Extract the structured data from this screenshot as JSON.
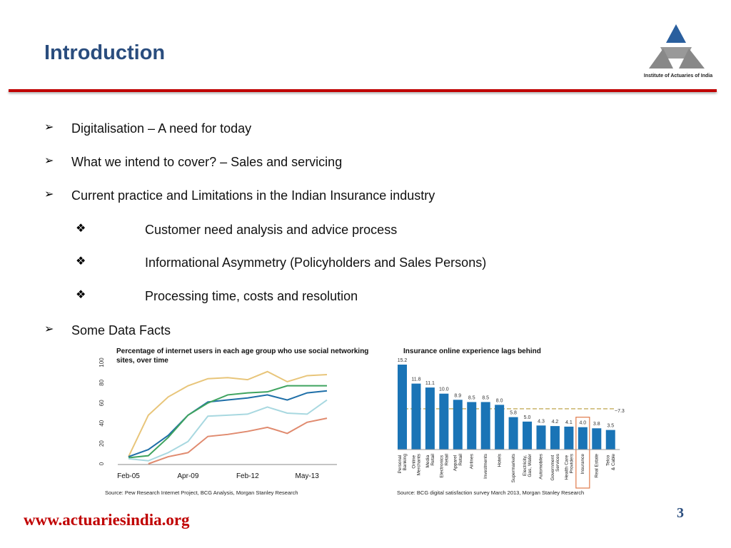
{
  "slide": {
    "title": "Introduction",
    "logo_text": "Institute of Actuaries of India",
    "bullets": [
      "Digitalisation – A need for today",
      "What we intend to cover? – Sales and servicing",
      "Current practice and Limitations in the Indian Insurance industry",
      "Some Data Facts"
    ],
    "sub_bullets": [
      "Customer need analysis and advice process",
      "Informational Asymmetry (Policyholders and Sales Persons)",
      "Processing time, costs and resolution"
    ],
    "footer": "www.actuariesindia.org",
    "page_number": "3"
  },
  "chart_data": [
    {
      "type": "line",
      "title": "Percentage of internet users in each age group who use social networking sites, over time",
      "source": "Source: Pew Research Internet Project, BCG Analysis, Morgan Stanley Research",
      "categories": [
        "Feb-05",
        null,
        null,
        "Apr-09",
        null,
        null,
        "Feb-12",
        null,
        null,
        "May-13",
        null
      ],
      "ylim": [
        0,
        100
      ],
      "yticks": [
        0,
        20,
        40,
        60,
        80,
        100
      ],
      "series": [
        {
          "color": "#e8c57a",
          "values": [
            7,
            48,
            66,
            77,
            84,
            85,
            83,
            91,
            81,
            87,
            88
          ]
        },
        {
          "color": "#1f6fa8",
          "values": [
            7,
            14,
            28,
            48,
            61,
            63,
            65,
            68,
            63,
            70,
            72
          ]
        },
        {
          "color": "#3fa35f",
          "values": [
            6,
            8,
            26,
            48,
            60,
            68,
            70,
            71,
            77,
            77,
            77
          ]
        },
        {
          "color": "#a8d8e0",
          "values": [
            5,
            3,
            11,
            22,
            47,
            48,
            49,
            56,
            50,
            49,
            63
          ]
        },
        {
          "color": "#e08a6e",
          "values": [
            null,
            0,
            7,
            11,
            27,
            29,
            32,
            36,
            30,
            41,
            45
          ]
        }
      ]
    },
    {
      "type": "bar",
      "title": "Insurance online experience lags behind",
      "source": "Source: BCG digital satisfaction survey March 2013, Morgan Stanley Research",
      "categories": [
        "Personal Banking",
        "Online Merchants",
        "Media Retail",
        "Electronics Retail",
        "Apparel Retail",
        "Airlines",
        "Investments",
        "Hotels",
        "Supermarkets",
        "Electricity, Gas, Water",
        "Automobiles",
        "Government Services",
        "Health Care Providers",
        "Insurance",
        "Real Estate",
        "Telco & Cable"
      ],
      "values": [
        15.2,
        11.8,
        11.1,
        10.0,
        8.9,
        8.5,
        8.5,
        8.0,
        5.8,
        5.0,
        4.3,
        4.2,
        4.1,
        4.0,
        3.8,
        3.5
      ],
      "value_labels": [
        "15.2",
        "11.8",
        "11.1",
        "10.0",
        "8.9",
        "8.5",
        "8.5",
        "8.0",
        "5.8",
        "5.0",
        "4.3",
        "4.2",
        "4.1",
        "4.0",
        "3.8",
        "3.5"
      ],
      "color": "#1a74b6",
      "reference_line": {
        "value": 7.3,
        "label": "~7.3",
        "color": "#c9b46a"
      },
      "highlight": {
        "category": "Insurance",
        "color": "#e07a4a"
      }
    }
  ]
}
